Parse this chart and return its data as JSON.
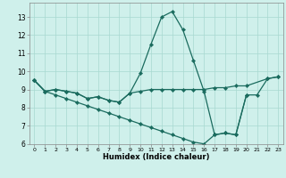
{
  "bg_color": "#cff0eb",
  "grid_color": "#a8d8d0",
  "line_color": "#1a6b5e",
  "xlabel": "Humidex (Indice chaleur)",
  "ylim": [
    6,
    13.8
  ],
  "xlim": [
    -0.5,
    23.5
  ],
  "yticks": [
    6,
    7,
    8,
    9,
    10,
    11,
    12,
    13
  ],
  "xticks": [
    0,
    1,
    2,
    3,
    4,
    5,
    6,
    7,
    8,
    9,
    10,
    11,
    12,
    13,
    14,
    15,
    16,
    17,
    18,
    19,
    20,
    21,
    22,
    23
  ],
  "curve1_x": [
    0,
    1,
    2,
    3,
    4,
    5,
    6,
    7,
    8,
    9,
    10,
    11,
    12,
    13,
    14,
    15,
    16,
    17,
    18,
    19,
    20,
    21,
    22,
    23
  ],
  "curve1_y": [
    9.5,
    8.9,
    9.0,
    8.9,
    8.8,
    8.5,
    8.6,
    8.4,
    8.3,
    8.8,
    9.9,
    11.5,
    13.0,
    13.3,
    12.3,
    10.6,
    8.9,
    6.5,
    6.6,
    6.5,
    8.7,
    8.7,
    9.6,
    9.7
  ],
  "curve2_x": [
    0,
    1,
    2,
    3,
    4,
    5,
    6,
    7,
    8,
    9,
    10,
    11,
    12,
    13,
    14,
    15,
    16,
    17,
    18,
    19,
    20,
    22,
    23
  ],
  "curve2_y": [
    9.5,
    8.9,
    9.0,
    8.9,
    8.8,
    8.5,
    8.6,
    8.4,
    8.3,
    8.8,
    8.9,
    9.0,
    9.0,
    9.0,
    9.0,
    9.0,
    9.0,
    9.1,
    9.1,
    9.2,
    9.2,
    9.6,
    9.7
  ],
  "curve3_x": [
    0,
    1,
    2,
    3,
    4,
    5,
    6,
    7,
    8,
    9,
    10,
    11,
    12,
    13,
    14,
    15,
    16,
    17,
    18,
    19,
    20
  ],
  "curve3_y": [
    9.5,
    8.9,
    8.7,
    8.5,
    8.3,
    8.1,
    7.9,
    7.7,
    7.5,
    7.3,
    7.1,
    6.9,
    6.7,
    6.5,
    6.3,
    6.1,
    6.0,
    6.5,
    6.6,
    6.5,
    8.7
  ]
}
